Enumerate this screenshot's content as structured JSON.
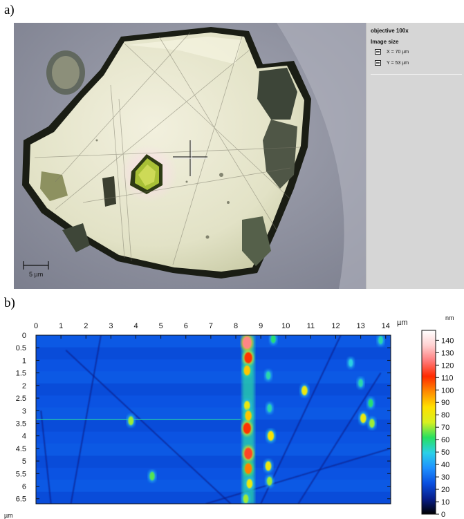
{
  "panel_a": {
    "label": "a)",
    "sidebar": {
      "objective": "objective 100x",
      "image_size_title": "Image size",
      "x_size": "X = 70 µm",
      "y_size": "Y = 53 µm",
      "x_icon": "image-width-icon",
      "y_icon": "image-height-icon"
    },
    "scale_bar_label": "5 µm"
  },
  "panel_b": {
    "label": "b)",
    "x_unit": "µm",
    "y_unit": "µm",
    "colorbar_unit": "nm"
  },
  "chart_data": {
    "type": "heatmap",
    "x_ticks": [
      "0",
      "1",
      "2",
      "3",
      "4",
      "5",
      "6",
      "7",
      "8",
      "9",
      "10",
      "11",
      "12",
      "13",
      "14"
    ],
    "y_ticks": [
      "0",
      "0.5",
      "1",
      "1.5",
      "2",
      "2.5",
      "3",
      "3.5",
      "4",
      "4.5",
      "5",
      "5.5",
      "6",
      "6.5"
    ],
    "xlim": [
      0,
      14.2
    ],
    "ylim": [
      0,
      6.7
    ],
    "colorbar": {
      "ticks": [
        "0",
        "10",
        "20",
        "30",
        "40",
        "50",
        "60",
        "70",
        "80",
        "90",
        "100",
        "110",
        "120",
        "130",
        "140"
      ],
      "range": [
        0,
        148
      ],
      "unit": "nm",
      "colors": [
        "#000000",
        "#081e8a",
        "#0a4fe0",
        "#1e90ff",
        "#2ad0e8",
        "#27e060",
        "#d8f020",
        "#ffe000",
        "#ff8a00",
        "#ff2a00",
        "#ff7a7a",
        "#ffd0d0",
        "#ffffff"
      ]
    },
    "background_height_nm": 25,
    "features": [
      {
        "x": 8.45,
        "y": 0.3,
        "height": 125
      },
      {
        "x": 8.5,
        "y": 0.9,
        "height": 110
      },
      {
        "x": 8.45,
        "y": 1.4,
        "height": 90
      },
      {
        "x": 8.45,
        "y": 2.8,
        "height": 80
      },
      {
        "x": 8.5,
        "y": 3.2,
        "height": 90
      },
      {
        "x": 8.45,
        "y": 3.7,
        "height": 110
      },
      {
        "x": 8.5,
        "y": 4.7,
        "height": 115
      },
      {
        "x": 8.5,
        "y": 5.3,
        "height": 100
      },
      {
        "x": 8.55,
        "y": 5.9,
        "height": 80
      },
      {
        "x": 8.4,
        "y": 6.5,
        "height": 70
      },
      {
        "x": 9.4,
        "y": 4.0,
        "height": 85
      },
      {
        "x": 9.3,
        "y": 5.2,
        "height": 80
      },
      {
        "x": 9.35,
        "y": 5.8,
        "height": 70
      },
      {
        "x": 10.75,
        "y": 2.2,
        "height": 80
      },
      {
        "x": 13.1,
        "y": 3.3,
        "height": 80
      },
      {
        "x": 13.45,
        "y": 3.5,
        "height": 70
      },
      {
        "x": 13.4,
        "y": 2.7,
        "height": 60
      },
      {
        "x": 13.0,
        "y": 1.9,
        "height": 55
      },
      {
        "x": 13.8,
        "y": 0.2,
        "height": 55
      },
      {
        "x": 3.8,
        "y": 3.4,
        "height": 70
      },
      {
        "x": 4.65,
        "y": 5.6,
        "height": 65
      },
      {
        "x": 9.5,
        "y": 0.15,
        "height": 60
      },
      {
        "x": 9.35,
        "y": 2.9,
        "height": 55
      },
      {
        "x": 12.6,
        "y": 1.1,
        "height": 50
      },
      {
        "x": 9.3,
        "y": 1.6,
        "height": 55
      }
    ]
  }
}
